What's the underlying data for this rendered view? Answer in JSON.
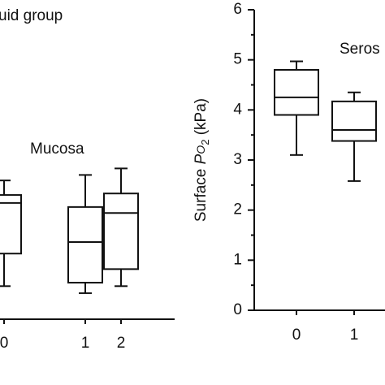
{
  "chart_data": [
    {
      "type": "box",
      "title": "uid group",
      "annotation": "Mucosa",
      "categories": [
        "0",
        "1",
        "2"
      ],
      "boxes": [
        {
          "low": 0.66,
          "q1": 1.31,
          "median": 2.32,
          "q3": 2.48,
          "high": 2.77
        },
        {
          "low": 0.52,
          "q1": 0.73,
          "median": 1.54,
          "q3": 2.24,
          "high": 2.88
        },
        {
          "low": 0.66,
          "q1": 1.0,
          "median": 2.12,
          "q3": 2.51,
          "high": 3.01
        }
      ]
    },
    {
      "type": "box",
      "annotation": "Seros",
      "ylabel": [
        "Surface ",
        "P",
        "O",
        "2",
        " (kPa)"
      ],
      "categories": [
        "0",
        "1"
      ],
      "boxes": [
        {
          "low": 3.1,
          "q1": 3.9,
          "median": 4.25,
          "q3": 4.8,
          "high": 4.97
        },
        {
          "low": 2.58,
          "q1": 3.38,
          "median": 3.6,
          "q3": 4.17,
          "high": 4.35
        }
      ],
      "ylim": [
        0,
        6
      ],
      "yticks": [
        0,
        1,
        2,
        3,
        4,
        5,
        6
      ]
    }
  ]
}
